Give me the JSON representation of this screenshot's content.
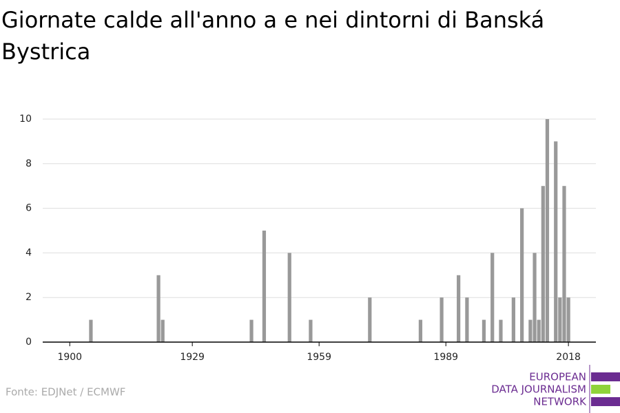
{
  "chart_data": {
    "type": "bar",
    "title": "Giornate calde all'anno a e nei dintorni di Banská Bystrica",
    "x": [
      1905,
      1921,
      1922,
      1943,
      1946,
      1952,
      1957,
      1971,
      1983,
      1988,
      1992,
      1994,
      1998,
      2000,
      2002,
      2005,
      2007,
      2009,
      2010,
      2011,
      2012,
      2013,
      2015,
      2016,
      2017,
      2018
    ],
    "values": [
      1,
      3,
      1,
      1,
      5,
      4,
      1,
      2,
      1,
      2,
      3,
      2,
      1,
      4,
      1,
      2,
      6,
      1,
      4,
      1,
      7,
      10,
      9,
      2,
      7,
      2
    ],
    "color": "#999999",
    "xlim": [
      1893.6,
      2024.5
    ],
    "xticks": [
      1900,
      1929,
      1959,
      1989,
      2018
    ],
    "ylim": [
      0,
      10
    ],
    "yticks": [
      0,
      2,
      4,
      6,
      8,
      10
    ],
    "grid": true,
    "source": "Fonte: EDJNet / ECMWF"
  },
  "logo": [
    "EUROPEAN",
    "DATA JOURNALISM",
    "NETWORK"
  ]
}
